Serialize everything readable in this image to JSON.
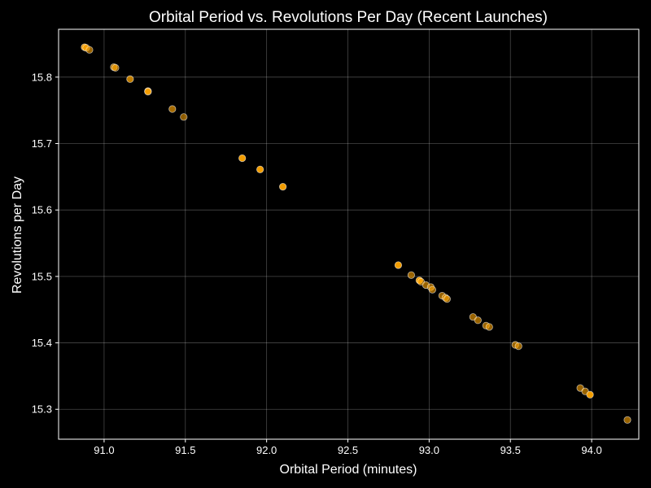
{
  "chart_data": {
    "type": "scatter",
    "title": "Orbital Period vs. Revolutions Per Day (Recent Launches)",
    "xlabel": "Orbital Period (minutes)",
    "ylabel": "Revolutions per Day",
    "xlim": [
      90.72,
      94.29
    ],
    "ylim": [
      15.255,
      15.872
    ],
    "xticks": [
      91.0,
      91.5,
      92.0,
      92.5,
      93.0,
      93.5,
      94.0
    ],
    "xtick_labels": [
      "91.0",
      "91.5",
      "92.0",
      "92.5",
      "93.0",
      "93.5",
      "94.0"
    ],
    "yticks": [
      15.3,
      15.4,
      15.5,
      15.6,
      15.7,
      15.8
    ],
    "ytick_labels": [
      "15.3",
      "15.4",
      "15.5",
      "15.6",
      "15.7",
      "15.8"
    ],
    "grid": true,
    "background_color": "#000000",
    "text_color": "#ffffff",
    "point_color": "#ffa500",
    "points": [
      {
        "x": 90.88,
        "y": 15.845,
        "opacity": 0.9
      },
      {
        "x": 90.89,
        "y": 15.844,
        "opacity": 0.6
      },
      {
        "x": 90.91,
        "y": 15.841,
        "opacity": 0.6
      },
      {
        "x": 91.06,
        "y": 15.815,
        "opacity": 0.7
      },
      {
        "x": 91.07,
        "y": 15.814,
        "opacity": 0.6
      },
      {
        "x": 91.16,
        "y": 15.797,
        "opacity": 0.75
      },
      {
        "x": 91.27,
        "y": 15.779,
        "opacity": 0.9
      },
      {
        "x": 91.27,
        "y": 15.778,
        "opacity": 0.6
      },
      {
        "x": 91.42,
        "y": 15.752,
        "opacity": 0.65
      },
      {
        "x": 91.49,
        "y": 15.74,
        "opacity": 0.55
      },
      {
        "x": 91.85,
        "y": 15.678,
        "opacity": 0.95
      },
      {
        "x": 91.96,
        "y": 15.661,
        "opacity": 0.95
      },
      {
        "x": 92.1,
        "y": 15.635,
        "opacity": 0.95
      },
      {
        "x": 92.81,
        "y": 15.517,
        "opacity": 0.95
      },
      {
        "x": 92.89,
        "y": 15.502,
        "opacity": 0.6
      },
      {
        "x": 92.94,
        "y": 15.494,
        "opacity": 0.95
      },
      {
        "x": 92.95,
        "y": 15.492,
        "opacity": 0.6
      },
      {
        "x": 92.98,
        "y": 15.487,
        "opacity": 0.6
      },
      {
        "x": 93.01,
        "y": 15.484,
        "opacity": 0.6
      },
      {
        "x": 93.02,
        "y": 15.48,
        "opacity": 0.6
      },
      {
        "x": 93.08,
        "y": 15.471,
        "opacity": 0.6
      },
      {
        "x": 93.1,
        "y": 15.468,
        "opacity": 0.6
      },
      {
        "x": 93.11,
        "y": 15.466,
        "opacity": 0.6
      },
      {
        "x": 93.27,
        "y": 15.439,
        "opacity": 0.6
      },
      {
        "x": 93.3,
        "y": 15.434,
        "opacity": 0.6
      },
      {
        "x": 93.35,
        "y": 15.426,
        "opacity": 0.6
      },
      {
        "x": 93.37,
        "y": 15.424,
        "opacity": 0.6
      },
      {
        "x": 93.53,
        "y": 15.397,
        "opacity": 0.6
      },
      {
        "x": 93.55,
        "y": 15.395,
        "opacity": 0.6
      },
      {
        "x": 93.93,
        "y": 15.332,
        "opacity": 0.6
      },
      {
        "x": 93.96,
        "y": 15.327,
        "opacity": 0.6
      },
      {
        "x": 93.99,
        "y": 15.322,
        "opacity": 0.95
      },
      {
        "x": 94.22,
        "y": 15.284,
        "opacity": 0.6
      }
    ]
  }
}
